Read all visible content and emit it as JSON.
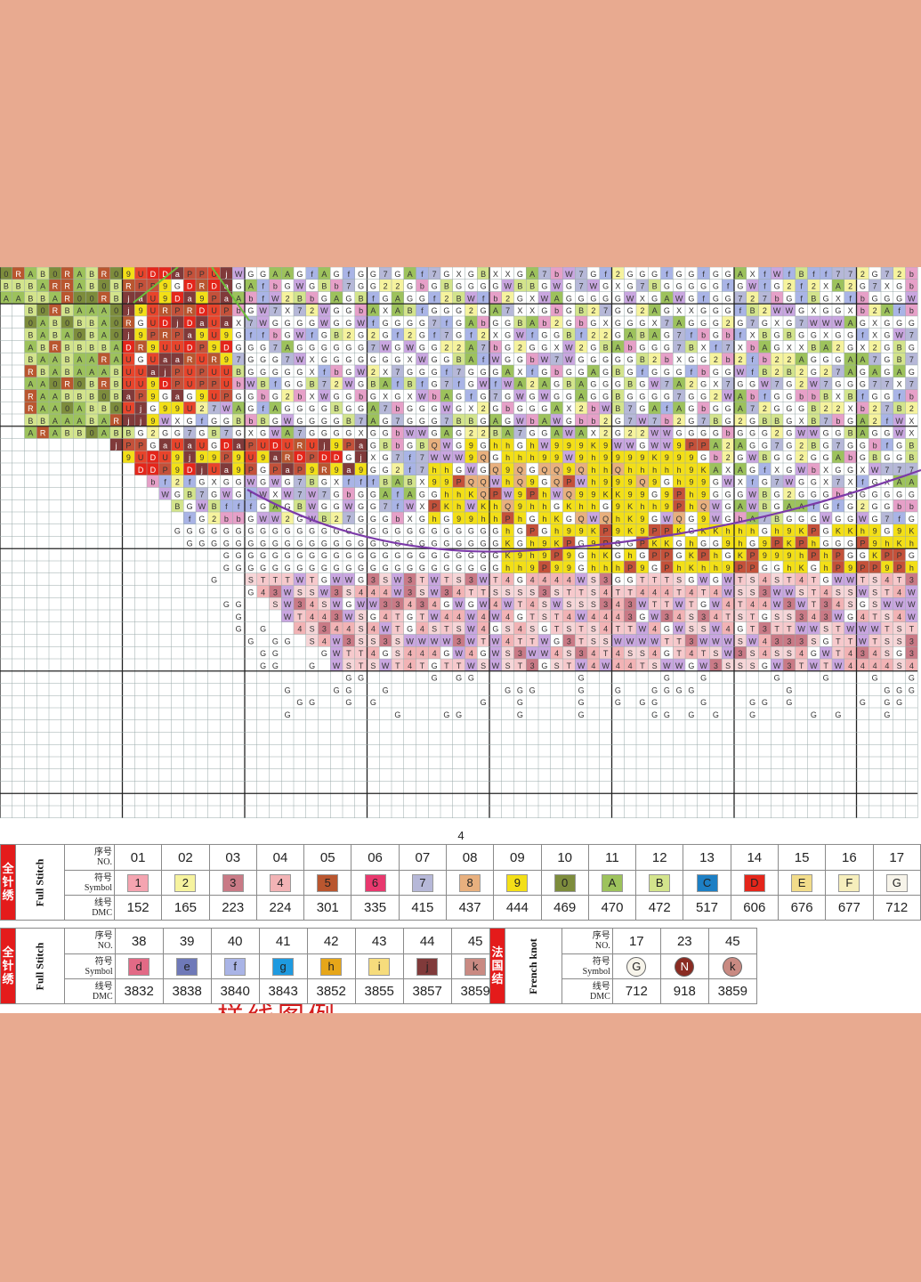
{
  "page_number": "4",
  "cutoff_heading": "样线图例",
  "legend_full_stitch_1": {
    "side_label_cn": [
      "全",
      "针",
      "绣"
    ],
    "side_label_en": "Full Stitch",
    "no_label_cn": "序号",
    "no_label_en": "NO.",
    "symbol_label_cn": "符号",
    "symbol_label_en": "Symbol",
    "dmc_label_cn": "线号",
    "dmc_label_en": "DMC",
    "items": [
      {
        "no": "01",
        "symbol": "1",
        "dmc": "152",
        "color": "#f4a4b0"
      },
      {
        "no": "02",
        "symbol": "2",
        "dmc": "165",
        "color": "#f6f39e"
      },
      {
        "no": "03",
        "symbol": "3",
        "dmc": "223",
        "color": "#c97a86"
      },
      {
        "no": "04",
        "symbol": "4",
        "dmc": "224",
        "color": "#f2b3b5"
      },
      {
        "no": "05",
        "symbol": "5",
        "dmc": "301",
        "color": "#b9562f"
      },
      {
        "no": "06",
        "symbol": "6",
        "dmc": "335",
        "color": "#e8386e"
      },
      {
        "no": "07",
        "symbol": "7",
        "dmc": "415",
        "color": "#b6b8d8"
      },
      {
        "no": "08",
        "symbol": "8",
        "dmc": "437",
        "color": "#e8b07e"
      },
      {
        "no": "09",
        "symbol": "9",
        "dmc": "444",
        "color": "#f3df17"
      },
      {
        "no": "10",
        "symbol": "0",
        "dmc": "469",
        "color": "#7d8c3c"
      },
      {
        "no": "11",
        "symbol": "A",
        "dmc": "470",
        "color": "#9dc25c"
      },
      {
        "no": "12",
        "symbol": "B",
        "dmc": "472",
        "color": "#d3e48c"
      },
      {
        "no": "13",
        "symbol": "C",
        "dmc": "517",
        "color": "#1d7fc4"
      },
      {
        "no": "14",
        "symbol": "D",
        "dmc": "606",
        "color": "#e4261b"
      },
      {
        "no": "15",
        "symbol": "E",
        "dmc": "676",
        "color": "#f2dc8a"
      },
      {
        "no": "16",
        "symbol": "F",
        "dmc": "677",
        "color": "#f6eebc"
      },
      {
        "no": "17",
        "symbol": "G",
        "dmc": "712",
        "color": "#f7f4ea"
      }
    ]
  },
  "legend_full_stitch_2": {
    "side_label_cn": [
      "全",
      "针",
      "绣"
    ],
    "side_label_en": "Full Stitch",
    "no_label_cn": "序号",
    "no_label_en": "NO.",
    "symbol_label_cn": "符号",
    "symbol_label_en": "Symbol",
    "dmc_label_cn": "线号",
    "dmc_label_en": "DMC",
    "items": [
      {
        "no": "38",
        "symbol": "d",
        "dmc": "3832",
        "color": "#e26a86"
      },
      {
        "no": "39",
        "symbol": "e",
        "dmc": "3838",
        "color": "#6f79b8"
      },
      {
        "no": "40",
        "symbol": "f",
        "dmc": "3840",
        "color": "#a9b4e6"
      },
      {
        "no": "41",
        "symbol": "g",
        "dmc": "3843",
        "color": "#1e9ae0"
      },
      {
        "no": "42",
        "symbol": "h",
        "dmc": "3852",
        "color": "#e6a619"
      },
      {
        "no": "43",
        "symbol": "i",
        "dmc": "3855",
        "color": "#f6dc7c"
      },
      {
        "no": "44",
        "symbol": "j",
        "dmc": "3857",
        "color": "#803a3a"
      },
      {
        "no": "45",
        "symbol": "k",
        "dmc": "3859",
        "color": "#c98a82"
      }
    ]
  },
  "legend_french_knot": {
    "side_label_cn": [
      "法",
      "国",
      "结"
    ],
    "side_label_en": "French knot",
    "no_label_cn": "序号",
    "no_label_en": "NO.",
    "symbol_label_cn": "符号",
    "symbol_label_en": "Symbol",
    "dmc_label_cn": "线号",
    "dmc_label_en": "DMC",
    "items": [
      {
        "no": "17",
        "symbol": "G",
        "dmc": "712",
        "color": "#f7f4ea"
      },
      {
        "no": "23",
        "symbol": "N",
        "dmc": "918",
        "color": "#8a2b22"
      },
      {
        "no": "45",
        "symbol": "k",
        "dmc": "3859",
        "color": "#c98a82"
      }
    ]
  },
  "grid_palette": {
    "A": "#9dc25c",
    "B": "#d3e48c",
    "0": "#7d8c3c",
    "R": "#b9562f",
    "D": "#e4261b",
    "P": "#c4513a",
    "U": "#e8442b",
    "9": "#f3df17",
    "7": "#b6b8d8",
    "G": "#ffffff",
    "X": "#ffffff",
    "W": "#c9a6e0",
    "3": "#c97a86",
    "4": "#f2b3b5",
    "T": "#f6c9cc",
    "S": "#f6d6d8",
    "K": "#f3df17",
    "Q": "#e8b07e",
    "h": "#f3df17",
    "f": "#a9b4e6",
    "2": "#f6f39e",
    "M": "#e26a86",
    "b": "#e6a0c8",
    "g": "#1e9ae0",
    "E": "#f2dc8a",
    "a": "#803a3a",
    "j": "#803a3a",
    "H": "#f6dc7c",
    "5": "#b9562f",
    "8": "#e8b07e",
    "1": "#f4a4b0"
  }
}
